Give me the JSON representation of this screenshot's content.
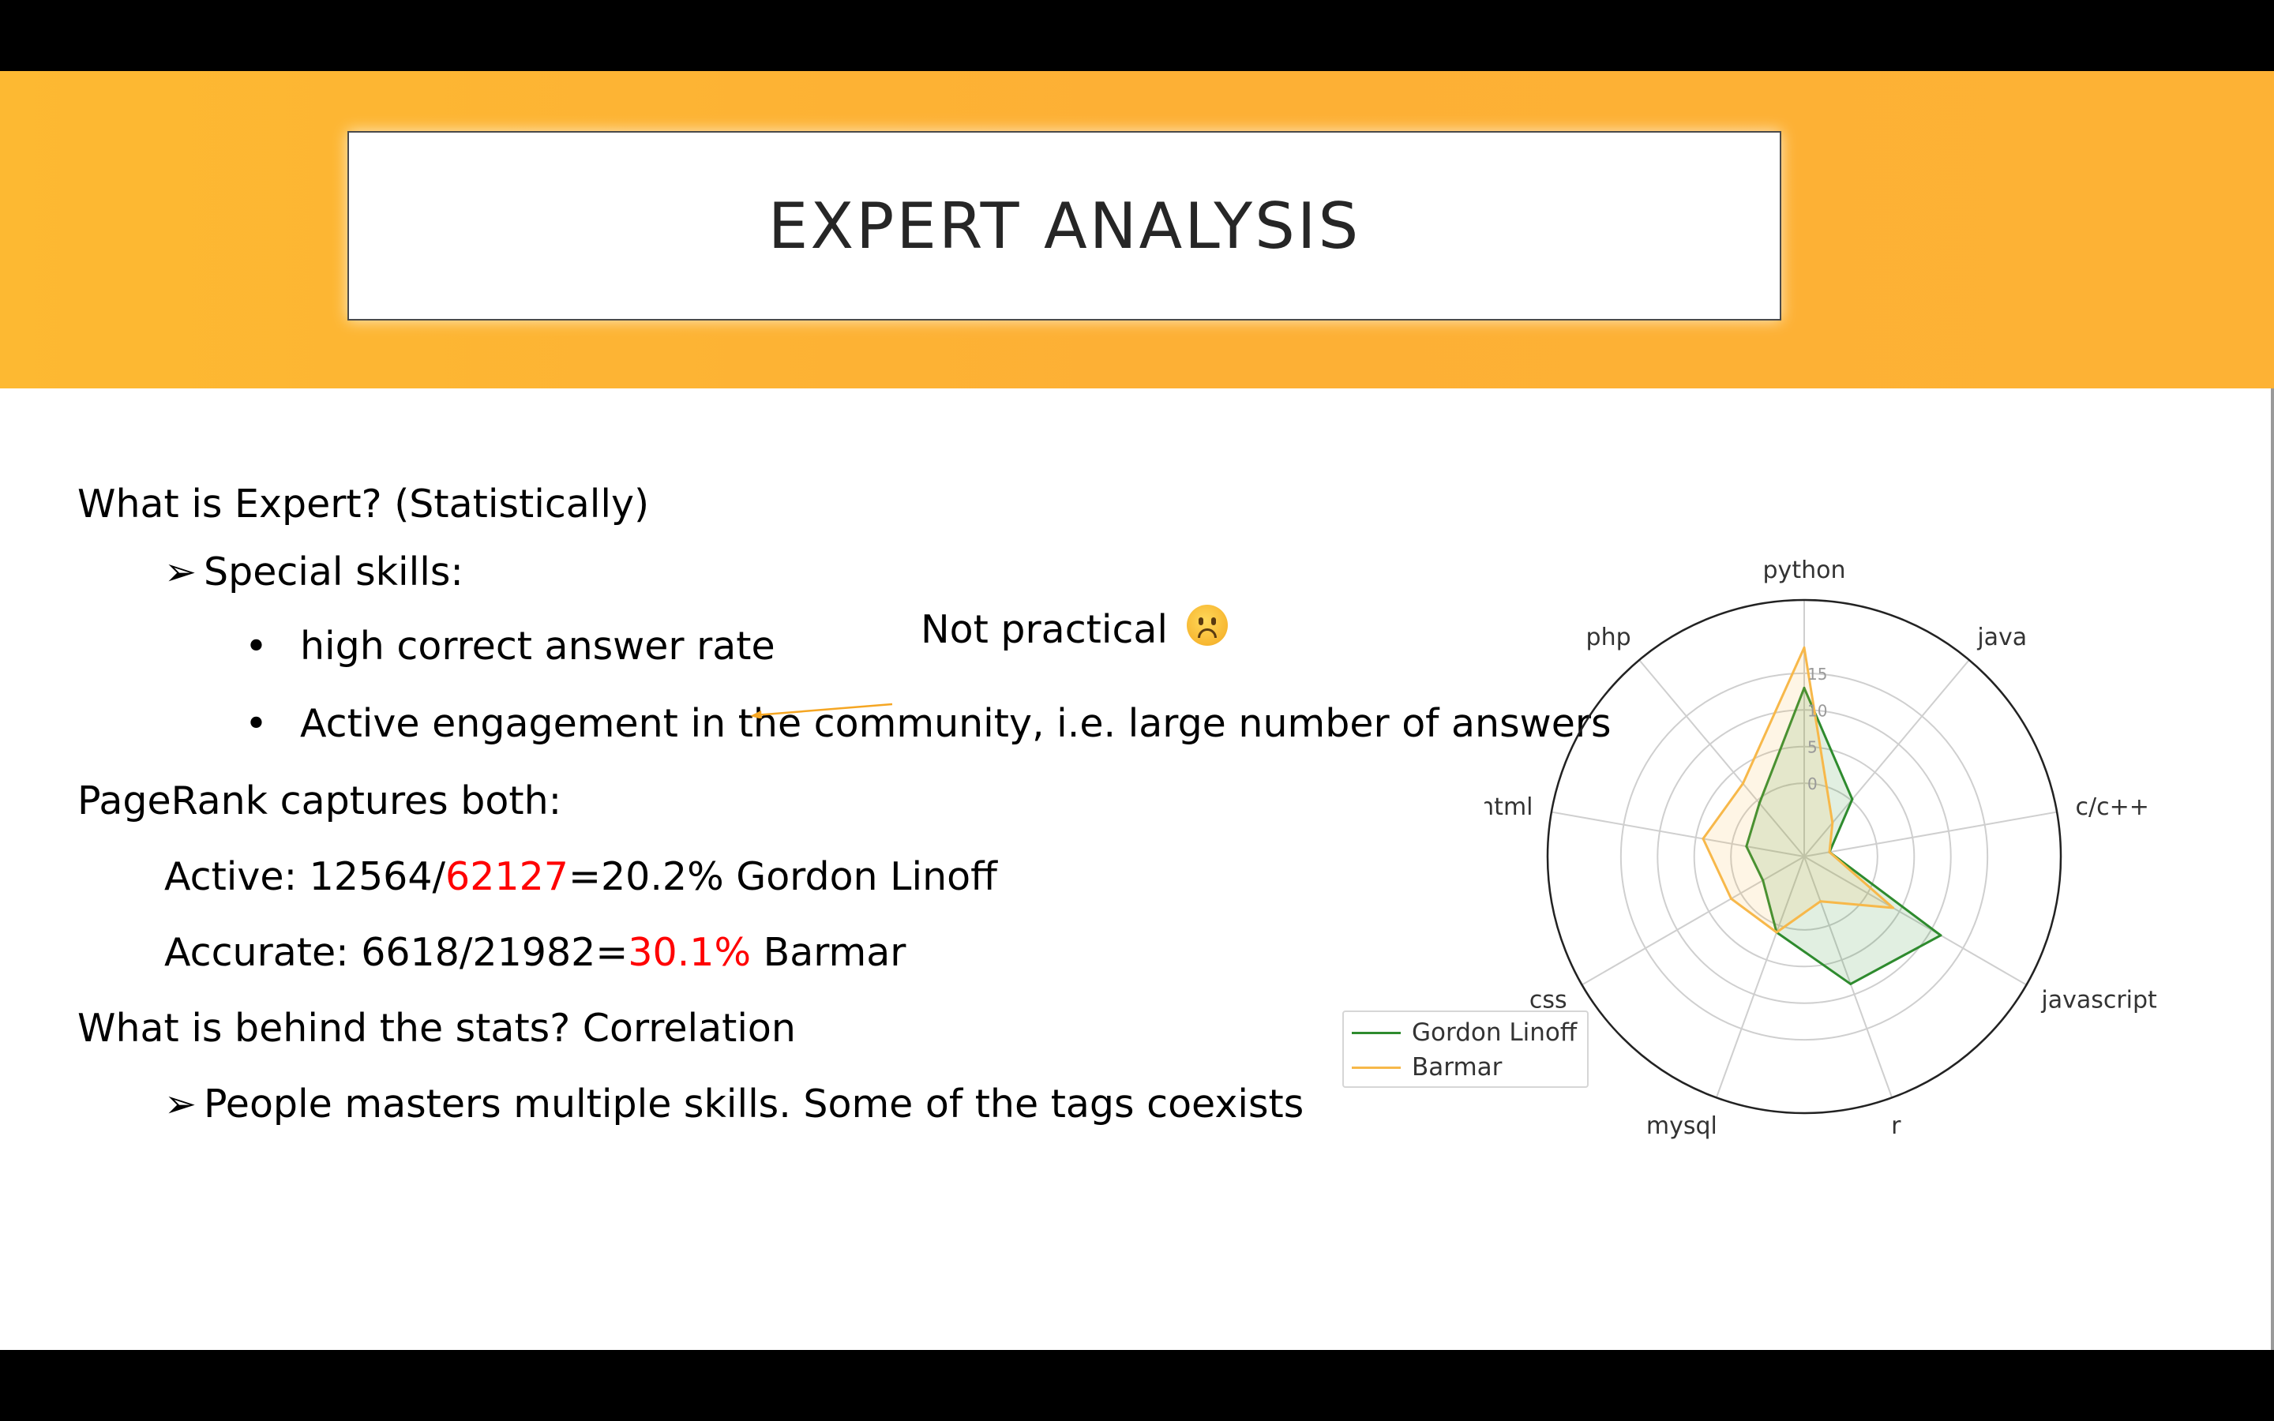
{
  "slide": {
    "title": "EXPERT ANALYSIS",
    "lines": {
      "q1": "What is Expert? (Statistically)",
      "special": "Special skills:",
      "bullet1": "high correct answer rate",
      "bullet2": "Active engagement in the community, i.e. large number of answers",
      "pagerank": "PageRank captures both:",
      "active_pre": "Active: 12564/",
      "active_red": "62127",
      "active_post": "=20.2% Gordon Linoff",
      "accurate_pre": "Accurate: 6618/21982=",
      "accurate_red": "30.1%",
      "accurate_post": " Barmar",
      "q2": "What is behind the stats? Correlation",
      "people": "People masters multiple skills. Some of the tags coexists"
    },
    "annotation": "Not practical",
    "icons": {
      "arrow_bullet": "➢",
      "dot_bullet": "•",
      "emoji": "frowning-face-icon"
    },
    "colors": {
      "banner": "#fdb535",
      "red": "#ff0000"
    }
  },
  "chart_data": {
    "type": "radar",
    "categories": [
      "python",
      "java",
      "c/c++",
      "javascript",
      "r",
      "mysql",
      "css",
      "html",
      "php"
    ],
    "rlim": [
      -10,
      25
    ],
    "rticks": [
      0,
      5,
      10,
      15
    ],
    "series": [
      {
        "name": "Gordon Linoff",
        "color": "#2e8b2e",
        "values": [
          13,
          0.2,
          -6.5,
          11.5,
          8.5,
          1,
          -3.5,
          -2,
          -0.5
        ]
      },
      {
        "name": "Barmar",
        "color": "#f7b84a",
        "values": [
          18.5,
          -4,
          -6.5,
          4,
          -3.5,
          1,
          1.5,
          4,
          3
        ]
      }
    ],
    "legend": "lower-left"
  }
}
